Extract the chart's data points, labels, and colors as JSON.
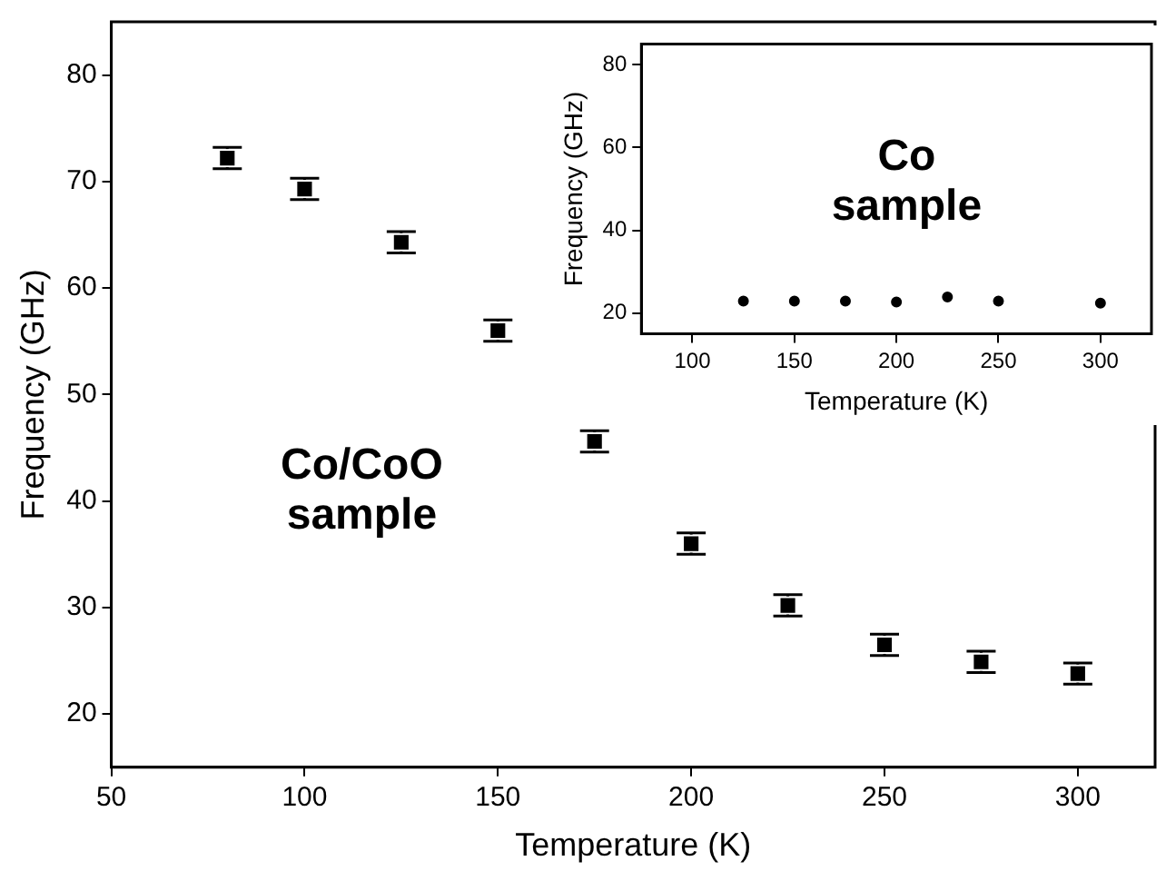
{
  "chart_data": [
    {
      "type": "scatter",
      "xlabel": "Temperature (K)",
      "ylabel": "Frequency (GHz)",
      "annotations": [
        "Co/CoO sample"
      ],
      "x": [
        80,
        100,
        125,
        150,
        175,
        200,
        225,
        250,
        275,
        300
      ],
      "series": [
        {
          "color": "#000000",
          "values": [
            72.2,
            69.3,
            64.3,
            56,
            45.6,
            36,
            30.2,
            26.5,
            24.9,
            23.8
          ],
          "errors": [
            1,
            1,
            1,
            1,
            1,
            1,
            1,
            1,
            1,
            1
          ]
        }
      ],
      "xlim": [
        50,
        320
      ],
      "xticks": [
        50,
        100,
        150,
        200,
        250,
        300
      ],
      "ylim": [
        15,
        85
      ],
      "yticks": [
        20,
        30,
        40,
        50,
        60,
        70,
        80
      ],
      "marker": "square",
      "grid": false,
      "legend": false
    },
    {
      "type": "scatter",
      "xlabel": "Temperature (K)",
      "ylabel": "Frequency (GHz)",
      "annotations": [
        "Co sample"
      ],
      "x": [
        125,
        150,
        175,
        200,
        225,
        250,
        300
      ],
      "series": [
        {
          "color": "#000000",
          "values": [
            22.9,
            22.9,
            22.9,
            22.7,
            23.9,
            22.9,
            22.4
          ]
        }
      ],
      "xlim": [
        75,
        325
      ],
      "xticks": [
        100,
        150,
        200,
        250,
        300
      ],
      "ylim": [
        15,
        85
      ],
      "yticks": [
        20,
        40,
        60,
        80
      ],
      "marker": "circle",
      "grid": false,
      "legend": false
    }
  ]
}
